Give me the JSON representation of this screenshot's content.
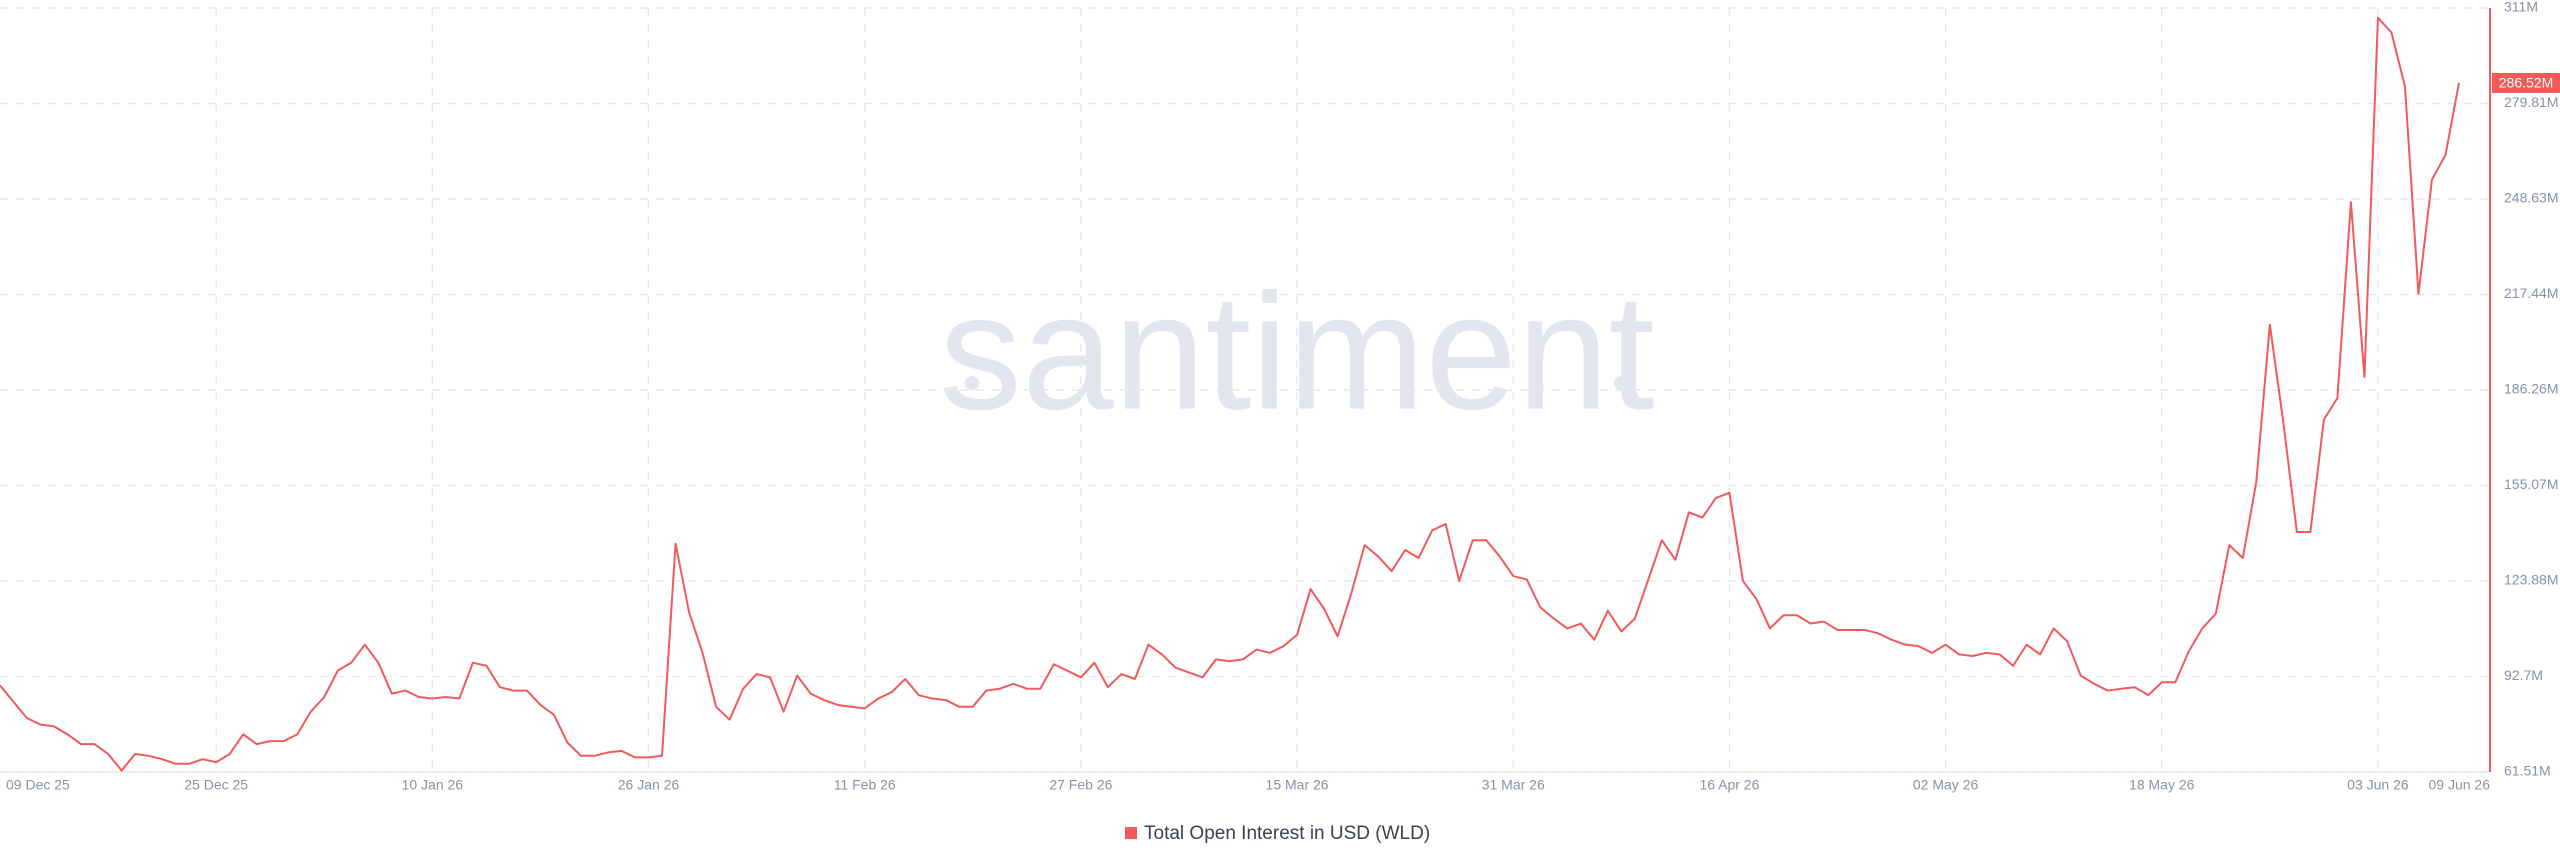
{
  "chart_data": {
    "type": "line",
    "watermark": "santiment",
    "categories": [
      "09 Dec 25",
      null,
      null,
      null,
      null,
      null,
      null,
      null,
      null,
      null,
      null,
      null,
      null,
      null,
      null,
      null,
      "25 Dec 25",
      null,
      null,
      null,
      null,
      null,
      null,
      null,
      null,
      null,
      null,
      null,
      null,
      null,
      null,
      null,
      "10 Jan 26",
      null,
      null,
      null,
      null,
      null,
      null,
      null,
      null,
      null,
      null,
      null,
      null,
      null,
      null,
      null,
      "26 Jan 26",
      null,
      null,
      null,
      null,
      null,
      null,
      null,
      null,
      null,
      null,
      null,
      null,
      null,
      null,
      null,
      "11 Feb 26",
      null,
      null,
      null,
      null,
      null,
      null,
      null,
      null,
      null,
      null,
      null,
      null,
      null,
      null,
      null,
      "27 Feb 26",
      null,
      null,
      null,
      null,
      null,
      null,
      null,
      null,
      null,
      null,
      null,
      null,
      null,
      null,
      null,
      "15 Mar 26",
      null,
      null,
      null,
      null,
      null,
      null,
      null,
      null,
      null,
      null,
      null,
      null,
      null,
      null,
      null,
      "31 Mar 26",
      null,
      null,
      null,
      null,
      null,
      null,
      null,
      null,
      null,
      null,
      null,
      null,
      null,
      null,
      null,
      "16 Apr 26",
      null,
      null,
      null,
      null,
      null,
      null,
      null,
      null,
      null,
      null,
      null,
      null,
      null,
      null,
      null,
      "02 May 26",
      null,
      null,
      null,
      null,
      null,
      null,
      null,
      null,
      null,
      null,
      null,
      null,
      null,
      null,
      null,
      "18 May 26",
      null,
      null,
      null,
      null,
      null,
      null,
      null,
      null,
      null,
      null,
      null,
      null,
      null,
      null,
      null,
      "03 Jun 26",
      null,
      null,
      null,
      null,
      null,
      "09 Jun 26"
    ],
    "series": [
      {
        "name": "Total Open Interest in USD (WLD)",
        "color": "#f05a5a",
        "values": [
          89.8,
          84.4,
          79.1,
          77,
          76.4,
          73.8,
          70.6,
          70.6,
          67.4,
          62,
          67.4,
          66.8,
          65.7,
          64.2,
          64.2,
          65.7,
          64.7,
          67.4,
          73.8,
          70.6,
          71.6,
          71.6,
          73.8,
          81.2,
          86,
          94.6,
          97.2,
          103.1,
          97.2,
          87.1,
          88.1,
          86,
          85.5,
          86,
          85.5,
          97.2,
          96.2,
          89.2,
          88.1,
          88.1,
          83.4,
          80.2,
          71.1,
          66.8,
          66.8,
          67.9,
          68.4,
          66.3,
          66.3,
          66.8,
          136.1,
          113.7,
          100.4,
          82.8,
          78.6,
          88.7,
          93.5,
          92.4,
          81.2,
          93,
          87.1,
          85,
          83.4,
          82.8,
          82.3,
          85.5,
          87.6,
          91.9,
          86.6,
          85.5,
          85,
          82.8,
          82.8,
          88.1,
          88.7,
          90.3,
          88.7,
          88.7,
          96.7,
          94.6,
          92.4,
          97.2,
          89.2,
          93.5,
          91.9,
          103.1,
          99.9,
          95.6,
          94,
          92.4,
          98.3,
          97.7,
          98.3,
          101.5,
          100.4,
          102.6,
          106.3,
          121.2,
          114.8,
          105.8,
          119.6,
          135.6,
          131.9,
          127.1,
          134,
          131.4,
          140.4,
          142.5,
          123.9,
          137.2,
          137.2,
          131.9,
          125.5,
          124.4,
          115.3,
          111.6,
          108.4,
          110,
          104.7,
          114.2,
          107.4,
          111.6,
          124.4,
          137.2,
          130.8,
          146.3,
          144.6,
          151,
          152.7,
          123.9,
          118,
          108.4,
          112.7,
          112.7,
          110,
          110.6,
          107.9,
          107.9,
          107.9,
          106.8,
          104.7,
          103.1,
          102.6,
          100.4,
          103.1,
          99.9,
          99.4,
          100.4,
          99.9,
          96.2,
          103.1,
          99.9,
          108.4,
          104.2,
          93,
          90.3,
          88.1,
          88.7,
          89.2,
          86.6,
          90.8,
          90.8,
          100.9,
          108.4,
          113.2,
          135.6,
          131.4,
          156.4,
          207.6,
          175.6,
          139.9,
          139.9,
          176.6,
          183.6,
          247.6,
          190.5,
          307.8,
          303,
          285.4,
          217.7,
          255,
          263,
          286.52
        ],
        "value_labels": [
          null,
          null,
          null,
          null,
          null,
          null,
          null,
          null,
          null,
          null,
          null,
          null,
          null,
          null,
          null,
          null,
          null,
          null,
          null,
          null,
          null,
          null,
          null,
          null,
          null,
          null,
          null,
          null,
          null,
          null,
          null,
          null,
          null,
          null,
          null,
          null,
          null,
          null,
          null,
          null,
          null,
          null,
          null,
          null,
          null,
          null,
          null,
          null,
          null,
          null,
          null,
          null,
          null,
          null,
          null,
          null,
          null,
          null,
          null,
          null,
          null,
          null,
          null,
          null,
          null,
          null,
          null,
          null,
          null,
          null,
          null,
          null,
          null,
          null,
          null,
          null,
          null,
          null,
          null,
          null,
          null,
          null,
          null,
          null,
          null,
          null,
          null,
          null,
          null,
          null,
          null,
          null,
          null,
          null,
          null,
          null,
          null,
          null,
          null,
          null,
          null,
          null,
          null,
          null,
          null,
          null,
          null,
          null,
          null,
          null,
          null,
          null,
          null,
          null,
          null,
          null,
          null,
          null,
          null,
          null,
          null,
          null,
          null,
          null,
          null,
          null,
          null,
          null,
          null,
          null,
          null,
          null,
          null,
          null,
          null,
          null,
          null,
          null,
          null,
          null,
          null,
          null,
          null,
          null,
          null,
          null,
          null,
          null,
          null,
          null,
          null,
          null,
          null,
          null,
          null,
          null,
          null,
          null,
          null,
          null,
          null,
          null,
          null,
          null,
          null,
          null,
          null,
          null,
          null,
          null,
          null,
          null,
          null,
          null,
          null,
          null,
          null,
          null,
          null,
          null,
          null,
          null,
          "286.52M"
        ]
      }
    ],
    "ylim": [
      61.51,
      311
    ],
    "yticks": [
      {
        "value": 61.51,
        "label": "61.51M"
      },
      {
        "value": 92.7,
        "label": "92.7M"
      },
      {
        "value": 123.88,
        "label": "123.88M"
      },
      {
        "value": 155.07,
        "label": "155.07M"
      },
      {
        "value": 186.26,
        "label": "186.26M"
      },
      {
        "value": 217.44,
        "label": "217.44M"
      },
      {
        "value": 248.63,
        "label": "248.63M"
      },
      {
        "value": 279.81,
        "label": "279.81M"
      },
      {
        "value": 311,
        "label": "311M"
      }
    ],
    "grid": true,
    "legend": "bottom"
  }
}
